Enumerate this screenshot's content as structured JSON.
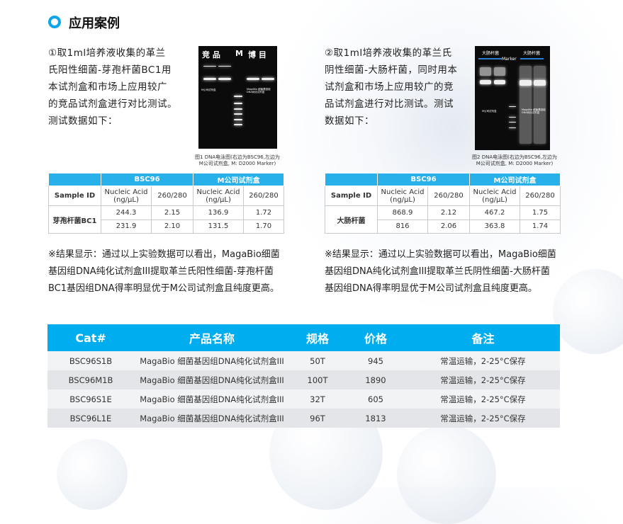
{
  "title": "应用案例",
  "case1": {
    "intro_lines": [
      "①取1ml培养液收集的革兰",
      "氏阳性细菌-芽孢杆菌BC1用",
      "本试剂盒和市场上应用较广",
      "的竞品试剂盒进行对比测试。",
      "测试数据如下："
    ],
    "gel_lanes": [
      "竞  品",
      "M",
      "博  目"
    ],
    "gel_label_left": "M公司试剂盒",
    "gel_label_right": "MagaBio 细菌基因组DNA纯化试剂盒",
    "caption": [
      "图1 DNA电泳图(右边为BSC96,左边为",
      "M公司试剂盒, M: D2000 Marker)"
    ],
    "table": {
      "group_headers": [
        "BSC96",
        "M公司试剂盒"
      ],
      "sample_id_label": "Sample ID",
      "col_nucleic": "Nucleic Acid (ng/μL)",
      "col_ratio": "260/280",
      "sample": "芽孢杆菌BC1",
      "rows": [
        [
          "244.3",
          "2.15",
          "136.9",
          "1.72"
        ],
        [
          "231.9",
          "2.10",
          "131.5",
          "1.70"
        ]
      ]
    },
    "result_lines": [
      "※结果显示：通过以上实验数据可以看出，MagaBio细菌",
      "基因组DNA纯化试剂盒III提取革兰氏阳性细菌-芽孢杆菌",
      "BC1基因组DNA得率明显优于M公司试剂盒且纯度更高。"
    ]
  },
  "case2": {
    "intro_lines": [
      "②取1ml培养液收集的革兰氏",
      "阴性细菌-大肠杆菌，同时用本",
      "试剂盒和市场上应用较广的竞",
      "品试剂盒进行对比测试。测试",
      "数据如下："
    ],
    "gel_lanes": [
      "大肠杆菌",
      "Marker",
      "大肠杆菌"
    ],
    "gel_label_left": "M公司试剂盒",
    "gel_label_right": "MagaBio 细菌基因组DNA纯化试剂盒",
    "caption": [
      "图2  DNA电泳图(右边为BSC96,左边为",
      "M公司试剂盒, M: D2000 Marker)"
    ],
    "table": {
      "group_headers": [
        "BSC96",
        "M公司试剂盒"
      ],
      "sample_id_label": "Sample ID",
      "col_nucleic": "Nucleic Acid (ng/μL)",
      "col_ratio": "260/280",
      "sample": "大肠杆菌",
      "rows": [
        [
          "868.9",
          "2.12",
          "467.2",
          "1.75"
        ],
        [
          "816",
          "2.06",
          "363.8",
          "1.74"
        ]
      ]
    },
    "result_lines": [
      "※结果显示：通过以上实验数据可以看出，MagaBio细菌",
      "基因组DNA纯化试剂盒III提取革兰氏阴性细菌-大肠杆菌",
      "基因组DNA得率明显优于M公司试剂盒且纯度更高。"
    ]
  },
  "products": {
    "headers": [
      "Cat#",
      "产品名称",
      "规格",
      "价格",
      "备注"
    ],
    "rows": [
      [
        "BSC96S1B",
        "MagaBio 细菌基因组DNA纯化试剂盒III",
        "50T",
        "945",
        "常温运输，2-25°C保存"
      ],
      [
        "BSC96M1B",
        "MagaBio 细菌基因组DNA纯化试剂盒III",
        "100T",
        "1890",
        "常温运输，2-25°C保存"
      ],
      [
        "BSC96S1E",
        "MagaBio 细菌基因组DNA纯化试剂盒III",
        "32T",
        "605",
        "常温运输，2-25°C保存"
      ],
      [
        "BSC96L1E",
        "MagaBio 细菌基因组DNA纯化试剂盒III",
        "96T",
        "1813",
        "常温运输，2-25°C保存"
      ]
    ]
  },
  "colors": {
    "accent": "#00aeef",
    "table_header": "#27b0ea"
  }
}
